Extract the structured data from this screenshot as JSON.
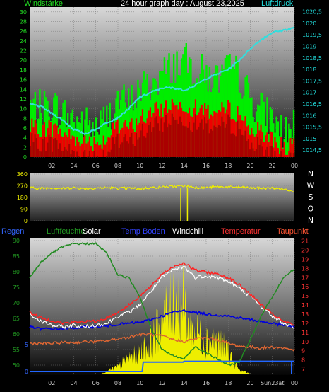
{
  "chart_data": [
    {
      "type": "bar",
      "title": "24 hour graph day : August 23,2025",
      "left_axis_label": "Windstärke",
      "right_axis_label": "Luftdruck",
      "x_tick_labels": [
        "02",
        "04",
        "06",
        "08",
        "10",
        "12",
        "14",
        "16",
        "18",
        "20",
        "22",
        "00"
      ],
      "left_ticks": [
        "0",
        "2",
        "4",
        "6",
        "8",
        "10",
        "12",
        "14",
        "16",
        "18",
        "20",
        "22",
        "24",
        "26",
        "28",
        "30"
      ],
      "right_ticks": [
        "1014,5",
        "1015",
        "1015,5",
        "1016",
        "1016,5",
        "1017",
        "1017,5",
        "1018",
        "1018,5",
        "1019",
        "1019,5",
        "1020",
        "1020,5"
      ],
      "ylim": [
        0,
        31
      ],
      "y2lim": [
        1014.2,
        1020.7
      ],
      "grid": true,
      "colors": {
        "gust": "#00ee00",
        "speed": "#ee0000",
        "base": "#aa0000",
        "pressure": "#33dddd"
      },
      "series": [
        {
          "key": "gust",
          "hours": [
            0,
            1,
            2,
            3,
            4,
            5,
            6,
            7,
            8,
            9,
            10,
            11,
            12,
            13,
            14,
            15,
            16,
            17,
            18,
            19,
            20,
            21,
            22,
            23,
            24
          ],
          "values": [
            11,
            10,
            11,
            9,
            8,
            7,
            6,
            8,
            12,
            11,
            14,
            15,
            17,
            19,
            20,
            18,
            17,
            16,
            18,
            17,
            12,
            10,
            8,
            5,
            6
          ]
        },
        {
          "key": "speed",
          "hours": [
            0,
            1,
            2,
            3,
            4,
            5,
            6,
            7,
            8,
            9,
            10,
            11,
            12,
            13,
            14,
            15,
            16,
            17,
            18,
            19,
            20,
            21,
            22,
            23,
            24
          ],
          "values": [
            6,
            6,
            6,
            5,
            4,
            4,
            3,
            4,
            6,
            6,
            8,
            9,
            10,
            11,
            11,
            10,
            10,
            9,
            10,
            9,
            6,
            5,
            4,
            2,
            2
          ]
        },
        {
          "key": "pressure",
          "hours": [
            0,
            1,
            2,
            3,
            4,
            5,
            6,
            7,
            8,
            9,
            10,
            11,
            12,
            13,
            14,
            15,
            16,
            17,
            18,
            19,
            20,
            21,
            22,
            23,
            24
          ],
          "values": [
            1016.5,
            1016.4,
            1016.1,
            1015.8,
            1015.4,
            1015.2,
            1015.4,
            1015.7,
            1015.9,
            1016.3,
            1016.8,
            1017.0,
            1017.2,
            1017.2,
            1017.1,
            1017.3,
            1017.6,
            1017.8,
            1018.0,
            1018.4,
            1018.9,
            1019.3,
            1019.6,
            1019.7,
            1019.8
          ]
        }
      ]
    },
    {
      "type": "scatter",
      "ticks": [
        "360",
        "270",
        "180",
        "90",
        "0"
      ],
      "ylim": [
        0,
        360
      ],
      "right_labels": [
        "N",
        "W",
        "S",
        "O",
        "N"
      ],
      "color": "#eeee00",
      "hours": [
        0,
        1,
        2,
        3,
        4,
        5,
        6,
        7,
        8,
        9,
        10,
        11,
        12,
        13,
        14,
        15,
        16,
        17,
        18,
        19,
        20,
        21,
        22,
        23,
        24
      ],
      "values": [
        255,
        250,
        255,
        250,
        255,
        248,
        252,
        255,
        250,
        252,
        248,
        255,
        260,
        265,
        270,
        258,
        255,
        262,
        260,
        258,
        255,
        250,
        252,
        245,
        230
      ],
      "spikes_hours": [
        13.7,
        14.3
      ]
    },
    {
      "type": "line",
      "legend": [
        "Regen",
        "Luftfeuchte",
        "Solar",
        "Temp Boden",
        "Windchill",
        "Temperatur",
        "Taupunkt"
      ],
      "left_ticks_1": [
        "0",
        "5"
      ],
      "left_ticks_2": [
        "50",
        "55",
        "60",
        "65",
        "70",
        "75",
        "80",
        "85",
        "90"
      ],
      "right_ticks": [
        "7",
        "8",
        "9",
        "10",
        "11",
        "12",
        "13",
        "14",
        "15",
        "16",
        "17",
        "18",
        "19",
        "20",
        "21"
      ],
      "x_tick_labels": [
        "02",
        "04",
        "06",
        "08",
        "10",
        "12",
        "14",
        "16",
        "18",
        "20",
        "Sun23at",
        "00"
      ],
      "humidity_lim": [
        50,
        90
      ],
      "temp_lim": [
        6.5,
        21.2
      ],
      "colors": {
        "regen": "#2266ff",
        "humidity": "#228b22",
        "solar": "#eeee00",
        "boden": "#0000dd",
        "windchill": "#ffffff",
        "temp": "#ff2222",
        "taupunkt": "#dd6633"
      },
      "series": [
        {
          "key": "humidity",
          "hours": [
            0,
            1,
            2,
            3,
            4,
            5,
            6,
            7,
            8,
            9,
            10,
            11,
            12,
            13,
            14,
            15,
            16,
            17,
            18,
            19,
            20,
            21,
            22,
            23,
            24
          ],
          "values": [
            78,
            83,
            86,
            88,
            89,
            89,
            89,
            86,
            79,
            78,
            72,
            62,
            55,
            53,
            52,
            56,
            54,
            52,
            50,
            51,
            58,
            66,
            72,
            78,
            81
          ]
        },
        {
          "key": "temp",
          "hours": [
            0,
            1,
            2,
            3,
            4,
            5,
            6,
            7,
            8,
            9,
            10,
            11,
            12,
            13,
            14,
            15,
            16,
            17,
            18,
            19,
            20,
            21,
            22,
            23,
            24
          ],
          "values": [
            13.2,
            12.6,
            12.3,
            12.0,
            12.1,
            12.2,
            12.2,
            12.6,
            13.2,
            14.0,
            15.0,
            16.0,
            17.4,
            18.2,
            18.6,
            17.8,
            17.6,
            17.4,
            17.0,
            16.2,
            15.2,
            14.0,
            13.0,
            12.2,
            11.8
          ]
        },
        {
          "key": "windchill",
          "hours": [
            0,
            1,
            2,
            3,
            4,
            5,
            6,
            7,
            8,
            9,
            10,
            11,
            12,
            13,
            14,
            15,
            16,
            17,
            18,
            19,
            20,
            21,
            22,
            23,
            24
          ],
          "values": [
            13.0,
            12.2,
            11.8,
            11.6,
            11.8,
            11.6,
            11.8,
            12.0,
            12.8,
            13.2,
            14.0,
            15.5,
            17.0,
            17.8,
            18.2,
            17.0,
            17.2,
            17.0,
            16.6,
            15.8,
            15.0,
            13.8,
            12.8,
            12.0,
            11.6
          ]
        },
        {
          "key": "boden",
          "hours": [
            0,
            1,
            2,
            3,
            4,
            5,
            6,
            7,
            8,
            9,
            10,
            11,
            12,
            13,
            14,
            15,
            16,
            17,
            18,
            19,
            20,
            21,
            22,
            23,
            24
          ],
          "values": [
            11.6,
            11.4,
            11.4,
            11.4,
            11.5,
            11.6,
            11.6,
            11.7,
            11.9,
            12.0,
            12.1,
            12.4,
            12.8,
            13.2,
            13.4,
            13.2,
            13.0,
            12.9,
            12.8,
            12.6,
            12.4,
            12.2,
            12.0,
            11.8,
            11.6
          ]
        },
        {
          "key": "taupunkt",
          "hours": [
            0,
            1,
            2,
            3,
            4,
            5,
            6,
            7,
            8,
            9,
            10,
            11,
            12,
            13,
            14,
            15,
            16,
            17,
            18,
            19,
            20,
            21,
            22,
            23,
            24
          ],
          "values": [
            9.8,
            9.8,
            9.8,
            9.9,
            9.9,
            10.0,
            10.0,
            10.1,
            10.3,
            10.5,
            10.8,
            10.8,
            10.6,
            10.2,
            10.0,
            10.3,
            10.4,
            10.2,
            9.8,
            9.5,
            9.4,
            9.3,
            9.4,
            9.3,
            9.1
          ]
        },
        {
          "key": "solar",
          "hours": [
            0,
            6.5,
            7,
            8,
            9,
            10,
            11,
            12,
            12.5,
            13,
            13.5,
            14,
            14.5,
            15,
            16,
            17,
            18,
            18.5,
            19,
            20,
            24
          ],
          "values": [
            0,
            0,
            2,
            6,
            14,
            18,
            28,
            45,
            55,
            70,
            60,
            62,
            40,
            38,
            30,
            28,
            20,
            10,
            3,
            0,
            0
          ]
        },
        {
          "key": "regen",
          "hours": [
            0,
            10,
            10.5,
            14,
            16,
            18,
            19,
            22,
            24
          ],
          "values": [
            0,
            0,
            1,
            1,
            1,
            1,
            1,
            1,
            1
          ]
        }
      ]
    }
  ]
}
